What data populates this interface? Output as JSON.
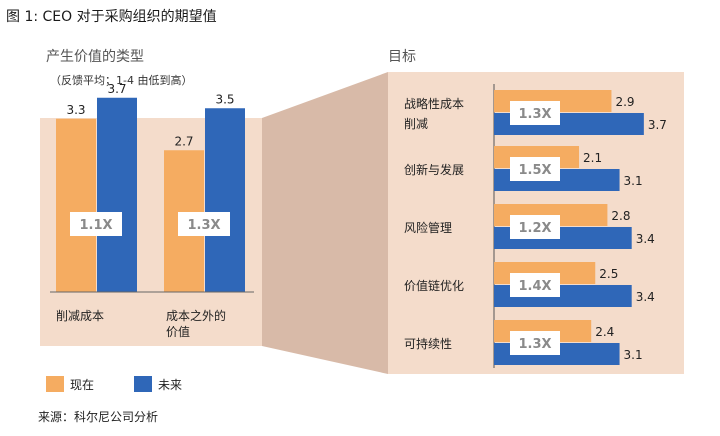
{
  "figure_title": "图 1: CEO 对于采购组织的期望值",
  "source": "来源：科尔尼公司分析",
  "colors": {
    "current": "#F5AC61",
    "future": "#2F67B8",
    "panel": "#F4DCCB",
    "funnel": "#D8BAA8"
  },
  "legend": {
    "current": "现在",
    "future": "未来"
  },
  "chart_data": [
    {
      "type": "bar",
      "title": "产生价值的类型",
      "subtitle": "（反馈平均；1-4 由低到高）",
      "orientation": "vertical",
      "categories": [
        "削减成本",
        "成本之外的价值"
      ],
      "series": [
        {
          "name": "现在",
          "values": [
            3.3,
            2.7
          ]
        },
        {
          "name": "未来",
          "values": [
            3.7,
            3.5
          ]
        }
      ],
      "ratios": [
        "1.1X",
        "1.3X"
      ],
      "ylim": [
        0,
        4
      ]
    },
    {
      "type": "bar",
      "title": "目标",
      "orientation": "horizontal",
      "categories": [
        "战略性成本削减",
        "创新与发展",
        "风险管理",
        "价值链优化",
        "可持续性"
      ],
      "series": [
        {
          "name": "现在",
          "values": [
            2.9,
            2.1,
            2.8,
            2.5,
            2.4
          ]
        },
        {
          "name": "未来",
          "values": [
            3.7,
            3.1,
            3.4,
            3.4,
            3.1
          ]
        }
      ],
      "ratios": [
        "1.3X",
        "1.5X",
        "1.2X",
        "1.4X",
        "1.3X"
      ],
      "xlim": [
        0,
        4
      ]
    }
  ]
}
